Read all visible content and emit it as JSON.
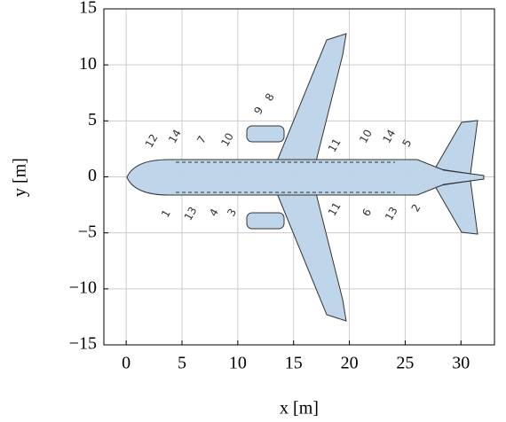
{
  "chart_data": {
    "type": "scatter",
    "xlabel": "x [m]",
    "ylabel": "y [m]",
    "xlim": [
      -2,
      33
    ],
    "ylim": [
      -15,
      15
    ],
    "xticks": [
      0,
      5,
      10,
      15,
      20,
      25,
      30
    ],
    "yticks": [
      {
        "value": -15,
        "label": "−15"
      },
      {
        "value": -10,
        "label": "−10"
      },
      {
        "value": -5,
        "label": "−5"
      },
      0,
      5,
      10,
      15
    ],
    "grid": true,
    "annotations": [
      {
        "text": "12",
        "x": 2.3,
        "y": 3.2
      },
      {
        "text": "14",
        "x": 4.4,
        "y": 3.6
      },
      {
        "text": "7",
        "x": 6.8,
        "y": 3.3
      },
      {
        "text": "10",
        "x": 9.1,
        "y": 3.3
      },
      {
        "text": "9",
        "x": 11.9,
        "y": 5.9
      },
      {
        "text": "8",
        "x": 12.9,
        "y": 7.1
      },
      {
        "text": "11",
        "x": 18.7,
        "y": 2.8
      },
      {
        "text": "10",
        "x": 21.5,
        "y": 3.6
      },
      {
        "text": "14",
        "x": 23.6,
        "y": 3.6
      },
      {
        "text": "5",
        "x": 25.2,
        "y": 3.0
      },
      {
        "text": "1",
        "x": 3.6,
        "y": -3.3
      },
      {
        "text": "13",
        "x": 5.8,
        "y": -3.3
      },
      {
        "text": "4",
        "x": 7.9,
        "y": -3.2
      },
      {
        "text": "3",
        "x": 9.5,
        "y": -3.2
      },
      {
        "text": "11",
        "x": 18.7,
        "y": -2.9
      },
      {
        "text": "6",
        "x": 21.6,
        "y": -3.2
      },
      {
        "text": "13",
        "x": 23.8,
        "y": -3.3
      },
      {
        "text": "2",
        "x": 26.0,
        "y": -2.8
      }
    ]
  }
}
